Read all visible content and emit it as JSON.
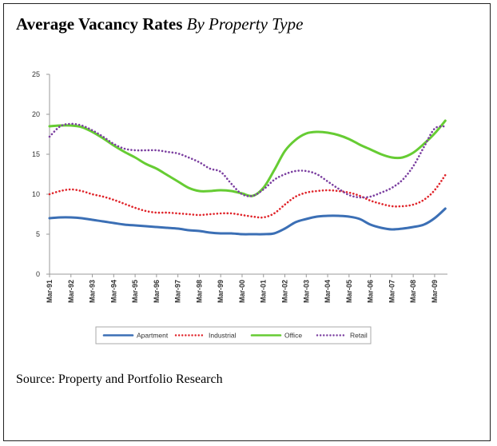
{
  "title": {
    "main": "Average Vacancy Rates",
    "sub": "By Property Type"
  },
  "source": "Source: Property and Portfolio Research",
  "chart_data": {
    "type": "line",
    "title": "Average Vacancy Rates By Property Type",
    "ylim": [
      0,
      25
    ],
    "yticks": [
      0,
      5,
      10,
      15,
      20,
      25
    ],
    "xlim": [
      0,
      18.6
    ],
    "xticks": [
      "Mar-91",
      "Mar-92",
      "Mar-93",
      "Mar-94",
      "Mar-95",
      "Mar-96",
      "Mar-97",
      "Mar-98",
      "Mar-99",
      "Mar-00",
      "Mar-01",
      "Mar-02",
      "Mar-03",
      "Mar-04",
      "Mar-05",
      "Mar-06",
      "Mar-07",
      "Mar-08",
      "Mar-09"
    ],
    "grid": "none",
    "legend": "bottom",
    "x": [
      0,
      0.5,
      1,
      1.5,
      2,
      2.5,
      3,
      3.5,
      4,
      4.5,
      5,
      5.5,
      6,
      6.5,
      7,
      7.5,
      8,
      8.5,
      9,
      9.5,
      10,
      10.5,
      11,
      11.5,
      12,
      12.5,
      13,
      13.5,
      14,
      14.5,
      15,
      15.5,
      16,
      16.5,
      17,
      17.5,
      18,
      18.5
    ],
    "series": [
      {
        "name": "Apartment",
        "color": "#3b6fb5",
        "style": "solid",
        "values": [
          7.0,
          7.1,
          7.1,
          7.0,
          6.8,
          6.6,
          6.4,
          6.2,
          6.1,
          6.0,
          5.9,
          5.8,
          5.7,
          5.5,
          5.4,
          5.2,
          5.1,
          5.1,
          5.0,
          5.0,
          5.0,
          5.1,
          5.7,
          6.5,
          6.9,
          7.2,
          7.3,
          7.3,
          7.2,
          6.9,
          6.2,
          5.8,
          5.6,
          5.7,
          5.9,
          6.2,
          7.0,
          8.2
        ]
      },
      {
        "name": "Industrial",
        "color": "#e0242a",
        "style": "dotted",
        "values": [
          10.0,
          10.4,
          10.6,
          10.4,
          10.0,
          9.7,
          9.3,
          8.8,
          8.3,
          7.9,
          7.7,
          7.7,
          7.6,
          7.5,
          7.4,
          7.5,
          7.6,
          7.6,
          7.4,
          7.2,
          7.1,
          7.6,
          8.7,
          9.7,
          10.2,
          10.4,
          10.5,
          10.4,
          10.2,
          9.8,
          9.2,
          8.8,
          8.5,
          8.5,
          8.7,
          9.3,
          10.5,
          12.4
        ]
      },
      {
        "name": "Office",
        "color": "#66cc33",
        "style": "solid",
        "values": [
          18.5,
          18.6,
          18.6,
          18.4,
          17.8,
          17.0,
          16.1,
          15.3,
          14.6,
          13.8,
          13.2,
          12.4,
          11.6,
          10.8,
          10.4,
          10.4,
          10.5,
          10.4,
          10.1,
          9.8,
          10.8,
          13.0,
          15.4,
          16.8,
          17.6,
          17.8,
          17.7,
          17.4,
          16.9,
          16.2,
          15.6,
          15.0,
          14.6,
          14.6,
          15.2,
          16.3,
          17.6,
          19.2
        ]
      },
      {
        "name": "Retail",
        "color": "#7b3fa0",
        "style": "dotted",
        "values": [
          17.2,
          18.5,
          18.8,
          18.6,
          18.0,
          17.2,
          16.3,
          15.7,
          15.5,
          15.5,
          15.5,
          15.3,
          15.1,
          14.6,
          14.0,
          13.2,
          12.8,
          11.3,
          10.0,
          9.8,
          10.6,
          11.8,
          12.5,
          12.9,
          12.9,
          12.5,
          11.6,
          10.7,
          9.9,
          9.6,
          9.7,
          10.2,
          10.8,
          11.8,
          13.5,
          15.9,
          18.2,
          18.5
        ]
      }
    ]
  }
}
